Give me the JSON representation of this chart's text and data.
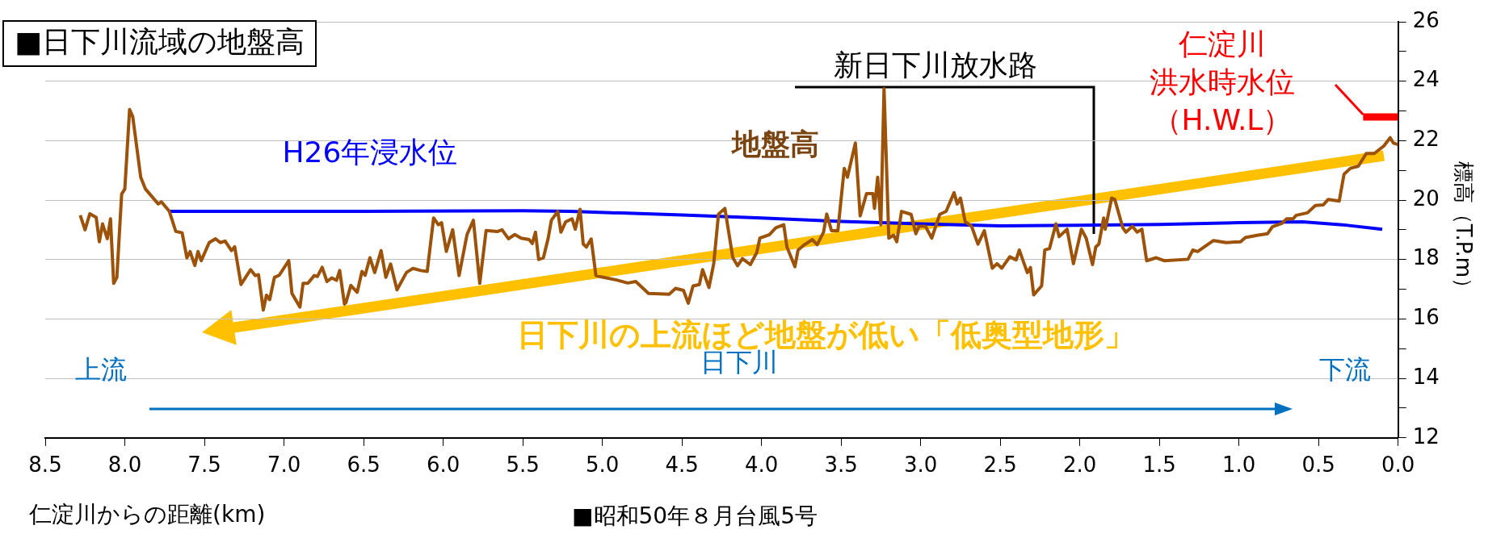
{
  "chart_data": {
    "type": "line",
    "title": "■日下川流域の地盤高",
    "xlabel": "仁淀川からの距離(km)",
    "ylabel": "標高（T.P.m）",
    "xlim": [
      8.5,
      0.0
    ],
    "xticks": [
      {
        "value": 8.5,
        "label": "8.5"
      },
      {
        "value": 8,
        "label": "8.0"
      },
      {
        "value": 7.5,
        "label": "7.5"
      },
      {
        "value": 7,
        "label": "7.0"
      },
      {
        "value": 6.5,
        "label": "6.5"
      },
      {
        "value": 6,
        "label": "6.0"
      },
      {
        "value": 5.5,
        "label": "5.5"
      },
      {
        "value": 5,
        "label": "5.0"
      },
      {
        "value": 4.5,
        "label": "4.5"
      },
      {
        "value": 4,
        "label": "4.0"
      },
      {
        "value": 3.5,
        "label": "3.5"
      },
      {
        "value": 3,
        "label": "3.0"
      },
      {
        "value": 2.5,
        "label": "2.5"
      },
      {
        "value": 2,
        "label": "2.0"
      },
      {
        "value": 1.5,
        "label": "1.5"
      },
      {
        "value": 1,
        "label": "1.0"
      },
      {
        "value": 0.5,
        "label": "0.5"
      },
      {
        "value": 0,
        "label": "0.0"
      }
    ],
    "ylim": [
      12,
      26
    ],
    "yticks": [
      12,
      {
        "value": 13,
        "label": null
      },
      14,
      {
        "value": 15,
        "label": null
      },
      16,
      {
        "value": 17,
        "label": null
      },
      18,
      {
        "value": 19,
        "label": null
      },
      20,
      {
        "value": 21,
        "label": null
      },
      22,
      {
        "value": 23,
        "label": null
      },
      24,
      {
        "value": 25,
        "label": null
      },
      26
    ],
    "grid": "y",
    "marker": "none",
    "series": [
      {
        "name": "地盤高",
        "color": "#9c5208",
        "x": [
          8.28,
          8.25,
          8.22,
          8.18,
          8.16,
          8.14,
          8.11,
          8.09,
          8.07,
          8.05,
          8.02,
          8.0,
          7.97,
          7.95,
          7.9,
          7.87,
          7.79,
          7.77,
          7.72,
          7.68,
          7.64,
          7.61,
          7.59,
          7.56,
          7.54,
          7.52,
          7.47,
          7.43,
          7.4,
          7.37,
          7.33,
          7.31,
          7.27,
          7.21,
          7.18,
          7.16,
          7.13,
          7.11,
          7.09,
          7.06,
          7.03,
          6.97,
          6.95,
          6.9,
          6.88,
          6.85,
          6.81,
          6.79,
          6.76,
          6.73,
          6.7,
          6.67,
          6.65,
          6.62,
          6.61,
          6.58,
          6.54,
          6.51,
          6.49,
          6.46,
          6.43,
          6.39,
          6.36,
          6.33,
          6.29,
          6.23,
          6.19,
          6.14,
          6.1,
          6.06,
          6.03,
          6.01,
          5.98,
          5.94,
          5.9,
          5.85,
          5.81,
          5.77,
          5.73,
          5.66,
          5.63,
          5.59,
          5.55,
          5.51,
          5.46,
          5.44,
          5.42,
          5.4,
          5.37,
          5.34,
          5.32,
          5.28,
          5.26,
          5.23,
          5.19,
          5.17,
          5.14,
          5.12,
          5.1,
          5.07,
          5.04,
          5.0,
          4.91,
          4.84,
          4.79,
          4.76,
          4.71,
          4.58,
          4.54,
          4.49,
          4.46,
          4.43,
          4.39,
          4.37,
          4.33,
          4.3,
          4.27,
          4.23,
          4.18,
          4.15,
          4.12,
          4.07,
          4.03,
          4.01,
          3.97,
          3.95,
          3.91,
          3.86,
          3.84,
          3.79,
          3.77,
          3.73,
          3.68,
          3.65,
          3.61,
          3.59,
          3.56,
          3.52,
          3.48,
          3.46,
          3.41,
          3.38,
          3.34,
          3.3,
          3.29,
          3.27,
          3.25,
          3.23,
          3.2,
          3.17,
          3.15,
          3.12,
          3.06,
          3.03,
          3.01,
          2.97,
          2.93,
          2.88,
          2.84,
          2.79,
          2.77,
          2.75,
          2.72,
          2.68,
          2.64,
          2.6,
          2.55,
          2.52,
          2.49,
          2.44,
          2.4,
          2.38,
          2.33,
          2.31,
          2.29,
          2.24,
          2.22,
          2.19,
          2.15,
          2.13,
          2.08,
          2.04,
          1.99,
          1.96,
          1.92,
          1.9,
          1.88,
          1.85,
          1.84,
          1.8,
          1.78,
          1.73,
          1.71,
          1.67,
          1.64,
          1.61,
          1.58,
          1.52,
          1.47,
          1.32,
          1.29,
          1.26,
          1.16,
          1.08,
          0.99,
          0.96,
          0.88,
          0.82,
          0.79,
          0.73,
          0.7,
          0.66,
          0.64,
          0.57,
          0.52,
          0.47,
          0.44,
          0.37,
          0.34,
          0.3,
          0.25,
          0.2,
          0.15,
          0.09,
          0.05,
          0.03,
          0.0
        ],
        "values": [
          19.49,
          19.0,
          19.54,
          19.42,
          18.6,
          19.2,
          18.7,
          19.37,
          17.2,
          17.4,
          20.2,
          20.37,
          23.05,
          22.8,
          20.77,
          20.37,
          19.87,
          19.94,
          19.62,
          18.95,
          18.9,
          18.06,
          18.27,
          17.8,
          18.27,
          17.96,
          18.57,
          18.7,
          18.57,
          18.62,
          18.3,
          18.43,
          17.16,
          17.66,
          17.46,
          17.49,
          16.3,
          16.8,
          16.65,
          17.4,
          17.47,
          17.96,
          16.86,
          16.4,
          17.2,
          17.2,
          17.46,
          17.43,
          17.74,
          17.26,
          17.38,
          17.3,
          17.63,
          16.5,
          16.56,
          17.13,
          16.9,
          17.6,
          17.47,
          18.06,
          17.56,
          18.3,
          17.4,
          17.85,
          16.98,
          17.57,
          17.7,
          17.63,
          17.6,
          19.4,
          19.17,
          19.24,
          18.27,
          19.0,
          17.46,
          18.84,
          19.32,
          17.2,
          18.98,
          18.94,
          19.0,
          18.7,
          18.84,
          18.72,
          18.67,
          18.54,
          18.92,
          18.0,
          18.06,
          18.72,
          19.32,
          19.62,
          18.92,
          19.27,
          19.37,
          19.02,
          19.69,
          18.52,
          18.42,
          18.69,
          17.46,
          17.41,
          17.31,
          17.21,
          17.26,
          17.11,
          16.86,
          16.83,
          17.03,
          16.96,
          16.53,
          17.11,
          17.16,
          17.66,
          17.06,
          17.86,
          19.53,
          19.72,
          18.06,
          17.79,
          18.03,
          17.83,
          18.23,
          18.72,
          18.8,
          18.84,
          19.07,
          19.17,
          18.42,
          17.76,
          18.32,
          18.5,
          18.67,
          18.5,
          18.92,
          19.53,
          18.97,
          18.97,
          21.07,
          20.77,
          21.92,
          19.47,
          20.22,
          20.22,
          19.72,
          20.77,
          19.17,
          23.75,
          18.72,
          18.82,
          18.6,
          19.62,
          19.52,
          18.87,
          19.12,
          19.12,
          18.72,
          19.52,
          19.62,
          20.25,
          19.87,
          20.07,
          19.27,
          19.12,
          18.52,
          18.97,
          17.71,
          17.86,
          17.71,
          18.09,
          17.99,
          18.32,
          17.56,
          17.73,
          16.81,
          17.11,
          18.32,
          18.37,
          19.2,
          18.77,
          19.02,
          17.86,
          19.02,
          18.72,
          17.83,
          18.42,
          18.52,
          19.4,
          19.02,
          20.07,
          20.02,
          19.07,
          18.92,
          19.12,
          18.92,
          19.02,
          17.96,
          18.06,
          17.96,
          18.01,
          18.32,
          18.27,
          18.64,
          18.57,
          18.6,
          18.74,
          18.82,
          18.87,
          19.1,
          19.22,
          19.37,
          19.37,
          19.49,
          19.57,
          19.82,
          19.84,
          20.02,
          19.97,
          20.87,
          21.07,
          21.14,
          21.57,
          21.57,
          21.82,
          22.1,
          21.92,
          21.87
        ]
      },
      {
        "name": "H26年浸水位",
        "color": "#0000ff",
        "x": [
          7.72,
          6.5,
          5.5,
          5.2,
          4.5,
          4.0,
          3.5,
          3.0,
          2.5,
          2.0,
          1.5,
          1.0,
          0.6,
          0.35,
          0.1
        ],
        "values": [
          19.62,
          19.62,
          19.64,
          19.62,
          19.5,
          19.4,
          19.28,
          19.2,
          19.13,
          19.15,
          19.18,
          19.24,
          19.27,
          19.17,
          19.02
        ]
      },
      {
        "name": "仁淀川洪水時水位（H.W.L）",
        "color": "#ff0000",
        "x": [
          0.22,
          0.0
        ],
        "values": [
          22.8,
          22.8
        ]
      }
    ],
    "annotations": [
      "新日下川放水路",
      "日下川の上流ほど地盤が低い「低奥型地形」",
      "上流",
      "日下川",
      "下流",
      "■昭和50年８月台風5号"
    ]
  }
}
